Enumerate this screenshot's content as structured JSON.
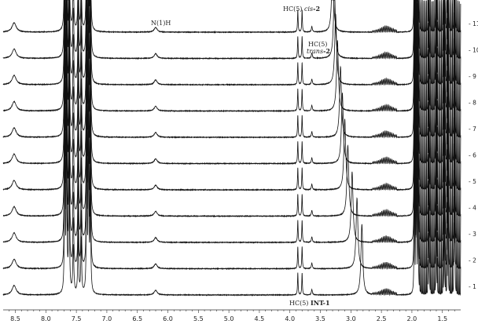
{
  "chart_data": {
    "type": "line",
    "title": "",
    "xlabel": "",
    "ylabel": "",
    "x_ticks": [
      "8.5",
      "8.0",
      "7.5",
      "7.0",
      "6.5",
      "6.0",
      "5.5",
      "5.0",
      "4.5",
      "4.0",
      "3.5",
      "3.0",
      "2.5",
      "2.0",
      "1.5"
    ],
    "xlim": [
      8.7,
      1.2
    ],
    "trace_labels": [
      "11",
      "10",
      "9",
      "8",
      "7",
      "6",
      "5",
      "4",
      "3",
      "2",
      "1"
    ],
    "grid": false,
    "legend": "none",
    "series": [
      {
        "label": "1",
        "water_ppm": 2.82
      },
      {
        "label": "2",
        "water_ppm": 2.9
      },
      {
        "label": "3",
        "water_ppm": 2.98
      },
      {
        "label": "4",
        "water_ppm": 3.05
      },
      {
        "label": "5",
        "water_ppm": 3.1
      },
      {
        "label": "6",
        "water_ppm": 3.14
      },
      {
        "label": "7",
        "water_ppm": 3.17
      },
      {
        "label": "8",
        "water_ppm": 3.22
      },
      {
        "label": "9",
        "water_ppm": 3.25
      },
      {
        "label": "10",
        "water_ppm": 3.27
      },
      {
        "label": "11",
        "water_ppm": 3.3
      }
    ],
    "annotations": [
      {
        "text": "N(1)H",
        "ppm": 6.2
      },
      {
        "text_a": "HC(5) ",
        "text_b": "cis",
        "text_c": "-2",
        "ppm": 3.85
      },
      {
        "text_a": "HC(5)",
        "text_b": "trans",
        "text_c": "-2",
        "ppm": 3.6
      },
      {
        "text_a": "HC(5) ",
        "text_b": "INT-1",
        "ppm": 3.25
      }
    ]
  }
}
